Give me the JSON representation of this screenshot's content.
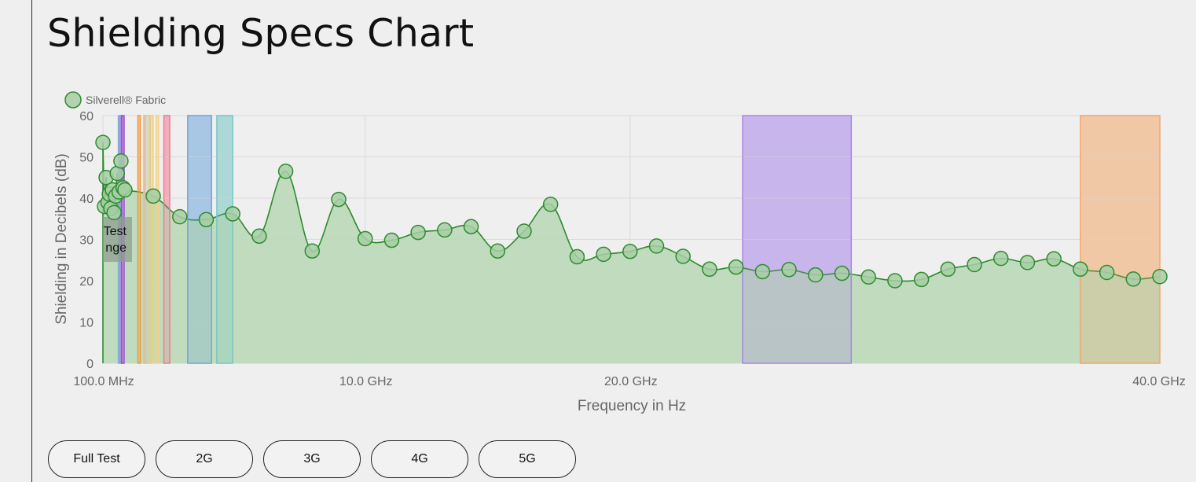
{
  "page": {
    "title": "Shielding Specs Chart"
  },
  "buttons": [
    {
      "id": "full-test",
      "label": "Full Test"
    },
    {
      "id": "2g",
      "label": "2G"
    },
    {
      "id": "3g",
      "label": "3G"
    },
    {
      "id": "4g",
      "label": "4G"
    },
    {
      "id": "5g",
      "label": "5G"
    }
  ],
  "chart_data": {
    "type": "area",
    "xlabel": "Frequency in Hz",
    "ylabel": "Shielding in Decibels (dB)",
    "xlim_ghz": [
      0.1,
      40
    ],
    "ylim": [
      0,
      60
    ],
    "x_ticks": [
      {
        "value": 0.1,
        "label": "100.0 MHz"
      },
      {
        "value": 10,
        "label": "10.0 GHz"
      },
      {
        "value": 20,
        "label": "20.0 GHz"
      },
      {
        "value": 40,
        "label": "40.0 GHz"
      }
    ],
    "y_ticks": [
      0,
      10,
      20,
      30,
      40,
      50,
      60
    ],
    "grid": true,
    "legend_position": "top-left",
    "series": [
      {
        "name": "Silverell® Fabric",
        "color": "#2e8b2e",
        "fill": "#bcd9ba",
        "x_ghz": [
          0.1,
          0.16,
          0.22,
          0.29,
          0.34,
          0.4,
          0.46,
          0.52,
          0.58,
          0.64,
          0.71,
          0.78,
          0.86,
          0.93,
          2.0,
          3.0,
          4.0,
          5.0,
          6.0,
          7.0,
          8.0,
          9.0,
          10.0,
          11.0,
          12.0,
          13.0,
          14.0,
          15.0,
          16.0,
          17.0,
          18.0,
          19.0,
          20.0,
          21.0,
          22.0,
          23.0,
          24.0,
          25.0,
          26.0,
          27.0,
          28.0,
          29.0,
          30.0,
          31.0,
          32.0,
          33.0,
          34.0,
          35.0,
          36.0,
          37.0,
          38.0,
          39.0,
          40.0
        ],
        "values": [
          53.5,
          38,
          45,
          39,
          41,
          37.5,
          42,
          36.5,
          40.5,
          46,
          41.5,
          49,
          42.5,
          42,
          40.5,
          35.5,
          34.8,
          36.2,
          30.8,
          46.5,
          27.2,
          39.7,
          30.2,
          29.8,
          31.7,
          32.3,
          33.1,
          27.2,
          32,
          38.5,
          25.8,
          26.4,
          27.1,
          28.4,
          25.9,
          22.8,
          23.3,
          22.2,
          22.7,
          21.4,
          21.8,
          20.9,
          20,
          20.3,
          22.8,
          23.9,
          25.4,
          24.4,
          25.3,
          22.8,
          22,
          20.4,
          21
        ]
      }
    ],
    "bands": [
      {
        "x0": 0.68,
        "x1": 0.72,
        "color": "#7fb3dd"
      },
      {
        "x0": 0.75,
        "x1": 0.83,
        "color": "#b48ce0"
      },
      {
        "x0": 0.8,
        "x1": 0.9,
        "color": "#9b4fd0"
      },
      {
        "x0": 1.42,
        "x1": 1.51,
        "color": "#f29a3a"
      },
      {
        "x0": 1.64,
        "x1": 1.68,
        "color": "#f2b6a0"
      },
      {
        "x0": 1.69,
        "x1": 1.88,
        "color": "#c8c8b0"
      },
      {
        "x0": 1.85,
        "x1": 1.99,
        "color": "#f2d26a"
      },
      {
        "x0": 2.11,
        "x1": 2.2,
        "color": "#f3d08a"
      },
      {
        "x0": 2.4,
        "x1": 2.62,
        "color": "#f07a90"
      },
      {
        "x0": 3.3,
        "x1": 4.2,
        "color": "#6ea6dc"
      },
      {
        "x0": 4.4,
        "x1": 5.0,
        "color": "#76c6c6"
      },
      {
        "x0": 24.25,
        "x1": 28.35,
        "color": "#a886ea"
      },
      {
        "x0": 37.0,
        "x1": 40.0,
        "color": "#f2a76a"
      }
    ],
    "annotation_lines": [
      "Test",
      "nge"
    ]
  }
}
